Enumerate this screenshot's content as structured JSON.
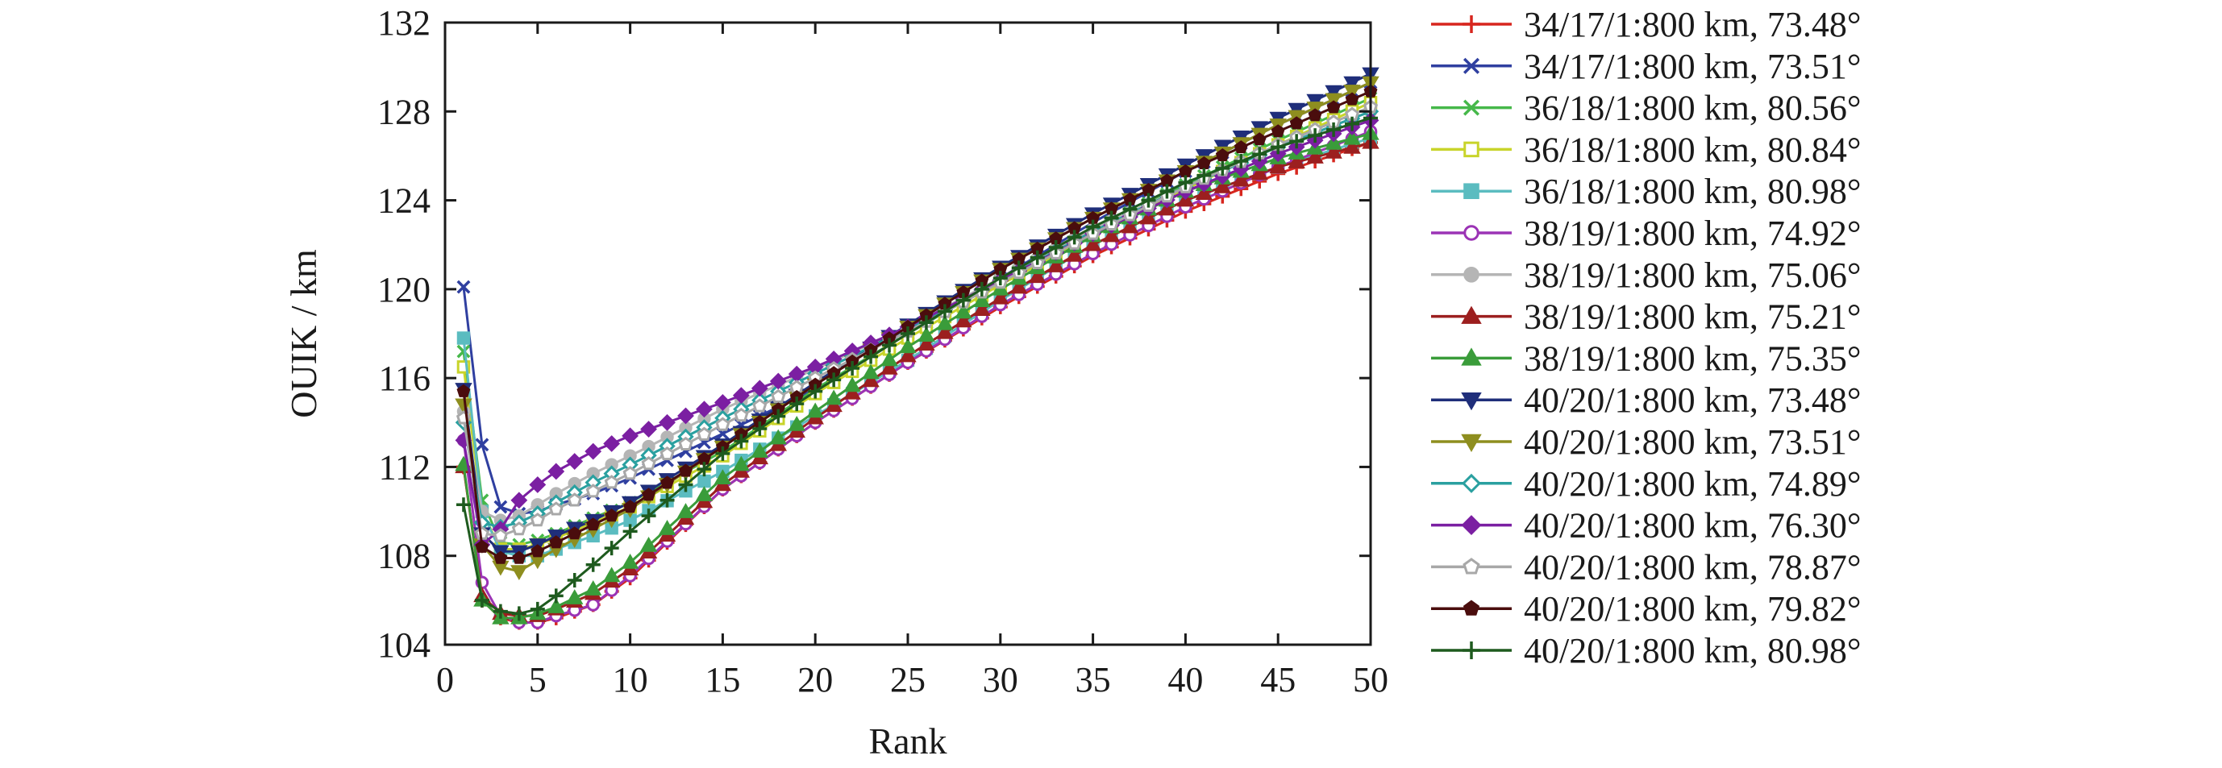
{
  "chart_data": {
    "type": "line",
    "xlabel": "Rank",
    "ylabel": "OUIK / km",
    "xlim": [
      0,
      50
    ],
    "ylim": [
      104,
      132
    ],
    "x_ticks": [
      "0",
      "5",
      "10",
      "15",
      "20",
      "25",
      "30",
      "35",
      "40",
      "45",
      "50"
    ],
    "y_ticks": [
      "104",
      "108",
      "112",
      "116",
      "120",
      "124",
      "128",
      "132"
    ],
    "grid": false,
    "legend_position": "outside-right",
    "series": [
      {
        "name": "34/17/1:800 km, 73.48°",
        "color": "#d7261e",
        "marker": "plus",
        "points": [
          [
            1,
            112.0
          ],
          [
            2,
            106.0
          ],
          [
            3,
            105.2
          ],
          [
            4,
            105.0
          ],
          [
            5,
            105.0
          ],
          [
            6,
            105.2
          ],
          [
            8,
            105.8
          ],
          [
            10,
            107.0
          ],
          [
            15,
            111.0
          ],
          [
            20,
            114.0
          ],
          [
            25,
            116.7
          ],
          [
            30,
            119.2
          ],
          [
            35,
            121.5
          ],
          [
            40,
            123.5
          ],
          [
            45,
            125.2
          ],
          [
            50,
            126.6
          ]
        ]
      },
      {
        "name": "34/17/1:800 km, 73.51°",
        "color": "#2f3fa0",
        "marker": "x",
        "points": [
          [
            1,
            120.1
          ],
          [
            2,
            113.0
          ],
          [
            3,
            110.2
          ],
          [
            4,
            109.9
          ],
          [
            5,
            110.0
          ],
          [
            6,
            110.3
          ],
          [
            8,
            110.8
          ],
          [
            10,
            111.5
          ],
          [
            15,
            113.5
          ],
          [
            20,
            115.5
          ],
          [
            25,
            118.0
          ],
          [
            30,
            120.5
          ],
          [
            35,
            123.0
          ],
          [
            40,
            125.3
          ],
          [
            45,
            127.4
          ],
          [
            50,
            129.3
          ]
        ]
      },
      {
        "name": "36/18/1:800 km, 80.56°",
        "color": "#46b84a",
        "marker": "x",
        "points": [
          [
            1,
            117.2
          ],
          [
            2,
            110.5
          ],
          [
            3,
            108.6
          ],
          [
            4,
            108.5
          ],
          [
            5,
            108.7
          ],
          [
            6,
            109.0
          ],
          [
            8,
            109.7
          ],
          [
            10,
            110.4
          ],
          [
            15,
            112.7
          ],
          [
            20,
            115.5
          ],
          [
            25,
            118.0
          ],
          [
            30,
            120.4
          ],
          [
            35,
            122.6
          ],
          [
            40,
            124.7
          ],
          [
            45,
            126.7
          ],
          [
            50,
            128.6
          ]
        ]
      },
      {
        "name": "36/18/1:800 km, 80.84°",
        "color": "#c8d42a",
        "marker": "square-open",
        "points": [
          [
            1,
            116.5
          ],
          [
            2,
            110.0
          ],
          [
            3,
            108.3
          ],
          [
            4,
            108.3
          ],
          [
            5,
            108.5
          ],
          [
            6,
            108.8
          ],
          [
            8,
            109.5
          ],
          [
            10,
            110.2
          ],
          [
            15,
            112.5
          ],
          [
            20,
            115.3
          ],
          [
            25,
            117.8
          ],
          [
            30,
            120.2
          ],
          [
            35,
            122.4
          ],
          [
            40,
            124.5
          ],
          [
            45,
            126.5
          ],
          [
            50,
            128.4
          ]
        ]
      },
      {
        "name": "36/18/1:800 km, 80.98°",
        "color": "#5bbcc0",
        "marker": "square",
        "points": [
          [
            1,
            117.8
          ],
          [
            2,
            110.0
          ],
          [
            3,
            108.2
          ],
          [
            4,
            108.0
          ],
          [
            5,
            108.0
          ],
          [
            6,
            108.3
          ],
          [
            8,
            108.9
          ],
          [
            10,
            109.6
          ],
          [
            15,
            111.8
          ],
          [
            20,
            114.3
          ],
          [
            25,
            116.8
          ],
          [
            30,
            119.5
          ],
          [
            35,
            122.0
          ],
          [
            40,
            124.0
          ],
          [
            45,
            125.5
          ],
          [
            50,
            126.8
          ]
        ]
      },
      {
        "name": "38/19/1:800 km, 74.92°",
        "color": "#9b33b5",
        "marker": "circle-open",
        "points": [
          [
            1,
            113.2
          ],
          [
            2,
            106.8
          ],
          [
            3,
            105.3
          ],
          [
            4,
            105.0
          ],
          [
            5,
            105.0
          ],
          [
            6,
            105.3
          ],
          [
            8,
            105.8
          ],
          [
            10,
            107.1
          ],
          [
            15,
            111.0
          ],
          [
            20,
            114.0
          ],
          [
            25,
            116.7
          ],
          [
            30,
            119.3
          ],
          [
            35,
            121.6
          ],
          [
            40,
            123.7
          ],
          [
            45,
            125.5
          ],
          [
            50,
            127.1
          ]
        ]
      },
      {
        "name": "38/19/1:800 km, 75.06°",
        "color": "#b5b5b5",
        "marker": "circle",
        "points": [
          [
            1,
            114.5
          ],
          [
            2,
            110.0
          ],
          [
            3,
            109.6
          ],
          [
            4,
            109.8
          ],
          [
            5,
            110.3
          ],
          [
            6,
            110.8
          ],
          [
            8,
            111.7
          ],
          [
            10,
            112.5
          ],
          [
            15,
            114.6
          ],
          [
            20,
            116.4
          ],
          [
            25,
            118.3
          ],
          [
            30,
            120.5
          ],
          [
            35,
            122.7
          ],
          [
            40,
            124.6
          ],
          [
            45,
            126.4
          ],
          [
            50,
            128.0
          ]
        ]
      },
      {
        "name": "38/19/1:800 km, 75.21°",
        "color": "#9c1f1f",
        "marker": "triangle",
        "points": [
          [
            1,
            112.0
          ],
          [
            2,
            106.2
          ],
          [
            3,
            105.4
          ],
          [
            4,
            105.3
          ],
          [
            5,
            105.3
          ],
          [
            6,
            105.6
          ],
          [
            8,
            106.3
          ],
          [
            10,
            107.4
          ],
          [
            15,
            111.2
          ],
          [
            20,
            114.2
          ],
          [
            25,
            117.0
          ],
          [
            30,
            119.6
          ],
          [
            35,
            122.0
          ],
          [
            40,
            124.0
          ],
          [
            45,
            125.5
          ],
          [
            50,
            126.6
          ]
        ]
      },
      {
        "name": "38/19/1:800 km, 75.35°",
        "color": "#3a9c3a",
        "marker": "triangle",
        "points": [
          [
            1,
            112.1
          ],
          [
            2,
            106.0
          ],
          [
            3,
            105.2
          ],
          [
            4,
            105.2
          ],
          [
            5,
            105.4
          ],
          [
            6,
            105.7
          ],
          [
            8,
            106.5
          ],
          [
            10,
            107.7
          ],
          [
            15,
            111.5
          ],
          [
            20,
            114.5
          ],
          [
            25,
            117.4
          ],
          [
            30,
            120.0
          ],
          [
            35,
            122.4
          ],
          [
            40,
            124.4
          ],
          [
            45,
            125.9
          ],
          [
            50,
            127.0
          ]
        ]
      },
      {
        "name": "40/20/1:800 km, 73.48°",
        "color": "#1f2e7a",
        "marker": "triangle-down",
        "points": [
          [
            1,
            115.5
          ],
          [
            2,
            109.0
          ],
          [
            3,
            108.2
          ],
          [
            4,
            108.2
          ],
          [
            5,
            108.5
          ],
          [
            6,
            108.9
          ],
          [
            8,
            109.6
          ],
          [
            10,
            110.4
          ],
          [
            15,
            113.0
          ],
          [
            20,
            115.8
          ],
          [
            25,
            118.4
          ],
          [
            30,
            121.0
          ],
          [
            35,
            123.4
          ],
          [
            40,
            125.6
          ],
          [
            45,
            127.7
          ],
          [
            50,
            129.7
          ]
        ]
      },
      {
        "name": "40/20/1:800 km, 73.51°",
        "color": "#8e8e1f",
        "marker": "triangle-down",
        "points": [
          [
            1,
            114.8
          ],
          [
            2,
            108.5
          ],
          [
            3,
            107.5
          ],
          [
            4,
            107.3
          ],
          [
            5,
            107.8
          ],
          [
            6,
            108.3
          ],
          [
            8,
            109.2
          ],
          [
            10,
            110.1
          ],
          [
            15,
            112.9
          ],
          [
            20,
            115.7
          ],
          [
            25,
            118.3
          ],
          [
            30,
            120.9
          ],
          [
            35,
            123.2
          ],
          [
            40,
            125.3
          ],
          [
            45,
            127.4
          ],
          [
            50,
            129.3
          ]
        ]
      },
      {
        "name": "40/20/1:800 km, 74.89°",
        "color": "#2aa0a0",
        "marker": "diamond-open",
        "points": [
          [
            1,
            114.0
          ],
          [
            2,
            109.5
          ],
          [
            3,
            109.3
          ],
          [
            4,
            109.5
          ],
          [
            5,
            109.9
          ],
          [
            6,
            110.4
          ],
          [
            8,
            111.3
          ],
          [
            10,
            112.1
          ],
          [
            15,
            114.2
          ],
          [
            20,
            116.2
          ],
          [
            25,
            118.2
          ],
          [
            30,
            120.4
          ],
          [
            35,
            122.6
          ],
          [
            40,
            124.6
          ],
          [
            45,
            126.4
          ],
          [
            50,
            128.0
          ]
        ]
      },
      {
        "name": "40/20/1:800 km, 76.30°",
        "color": "#7b1fa2",
        "marker": "diamond",
        "points": [
          [
            1,
            113.2
          ],
          [
            2,
            108.5
          ],
          [
            3,
            109.2
          ],
          [
            4,
            110.5
          ],
          [
            5,
            111.2
          ],
          [
            6,
            111.8
          ],
          [
            8,
            112.7
          ],
          [
            10,
            113.4
          ],
          [
            15,
            114.9
          ],
          [
            20,
            116.5
          ],
          [
            25,
            118.3
          ],
          [
            30,
            120.4
          ],
          [
            35,
            122.5
          ],
          [
            40,
            124.4
          ],
          [
            45,
            126.1
          ],
          [
            50,
            127.6
          ]
        ]
      },
      {
        "name": "40/20/1:800 km, 78.87°",
        "color": "#a8a8a8",
        "marker": "pentagon-open",
        "points": [
          [
            1,
            114.2
          ],
          [
            2,
            109.0
          ],
          [
            3,
            108.9
          ],
          [
            4,
            109.2
          ],
          [
            5,
            109.6
          ],
          [
            6,
            110.1
          ],
          [
            8,
            110.9
          ],
          [
            10,
            111.7
          ],
          [
            15,
            113.9
          ],
          [
            20,
            116.0
          ],
          [
            25,
            118.1
          ],
          [
            30,
            120.3
          ],
          [
            35,
            122.5
          ],
          [
            40,
            124.6
          ],
          [
            45,
            126.5
          ],
          [
            50,
            128.2
          ]
        ]
      },
      {
        "name": "40/20/1:800 km, 79.82°",
        "color": "#4a0d0d",
        "marker": "pentagon",
        "points": [
          [
            1,
            115.4
          ],
          [
            2,
            108.4
          ],
          [
            3,
            107.9
          ],
          [
            4,
            107.9
          ],
          [
            5,
            108.2
          ],
          [
            6,
            108.6
          ],
          [
            8,
            109.4
          ],
          [
            10,
            110.2
          ],
          [
            15,
            112.9
          ],
          [
            20,
            115.7
          ],
          [
            25,
            118.3
          ],
          [
            30,
            120.9
          ],
          [
            35,
            123.2
          ],
          [
            40,
            125.3
          ],
          [
            45,
            127.1
          ],
          [
            50,
            128.9
          ]
        ]
      },
      {
        "name": "40/20/1:800 km, 80.98°",
        "color": "#1e5a1e",
        "marker": "plus",
        "points": [
          [
            1,
            110.3
          ],
          [
            2,
            106.0
          ],
          [
            3,
            105.5
          ],
          [
            4,
            105.4
          ],
          [
            5,
            105.6
          ],
          [
            6,
            106.2
          ],
          [
            8,
            107.6
          ],
          [
            10,
            109.1
          ],
          [
            15,
            112.6
          ],
          [
            20,
            115.4
          ],
          [
            25,
            118.0
          ],
          [
            30,
            120.5
          ],
          [
            35,
            122.8
          ],
          [
            40,
            124.8
          ],
          [
            45,
            126.4
          ],
          [
            50,
            127.7
          ]
        ]
      }
    ]
  }
}
